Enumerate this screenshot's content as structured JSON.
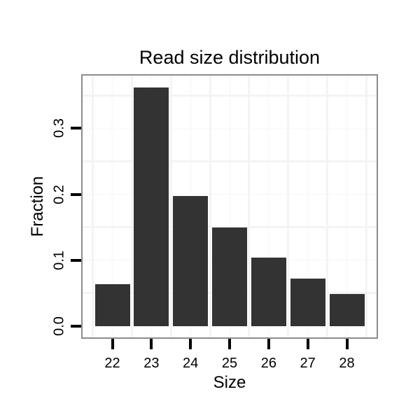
{
  "chart_data": {
    "type": "bar",
    "title": "Read size distribution",
    "xlabel": "Size",
    "ylabel": "Fraction",
    "categories": [
      "22",
      "23",
      "24",
      "25",
      "26",
      "27",
      "28"
    ],
    "values": [
      0.064,
      0.362,
      0.197,
      0.15,
      0.104,
      0.072,
      0.049
    ],
    "y_tick_labels": [
      "0.0",
      "0.1",
      "0.2",
      "0.3"
    ],
    "y_tick_values": [
      0.0,
      0.1,
      0.2,
      0.3
    ],
    "y_minor_values": [
      0.05,
      0.15,
      0.25,
      0.35
    ],
    "ylim": [
      -0.017,
      0.38
    ],
    "grid": "on",
    "legend": "none",
    "colors": {
      "bar_fill": "#333333",
      "panel_border": "#8c8c8c",
      "grid_minor": "#f4f4f4",
      "grid_major": "#fbfbfb",
      "tick": "#000000",
      "text": "#000000",
      "background": "#ffffff"
    }
  }
}
